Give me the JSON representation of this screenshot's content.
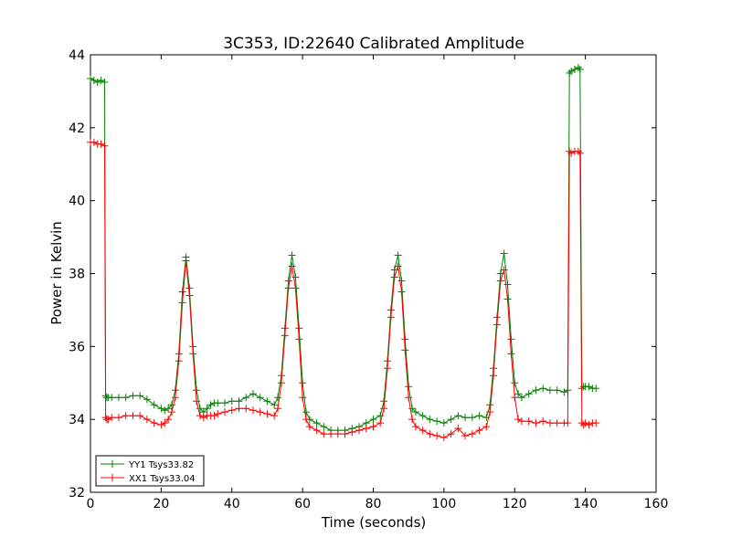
{
  "chart_data": {
    "type": "line",
    "title": "3C353, ID:22640 Calibrated Amplitude",
    "xlabel": "Time (seconds)",
    "ylabel": "Power in Kelvin",
    "xlim": [
      0,
      160
    ],
    "ylim": [
      32,
      44
    ],
    "xticks": [
      0,
      20,
      40,
      60,
      80,
      100,
      120,
      140,
      160
    ],
    "yticks": [
      32,
      34,
      36,
      38,
      40,
      42,
      44
    ],
    "grid": false,
    "legend_position": "lower-left",
    "series": [
      {
        "name": "YY1 Tsys33.82",
        "color": "#008000",
        "marker": "plus",
        "x": [
          0,
          1,
          2,
          3,
          4,
          4.3,
          4.6,
          5,
          6,
          8,
          10,
          12,
          14,
          16,
          18,
          20,
          21,
          22,
          23,
          24,
          25,
          26,
          27,
          28,
          29,
          30,
          31,
          32,
          33,
          34,
          35,
          36,
          38,
          40,
          42,
          44,
          46,
          48,
          50,
          52,
          53,
          54,
          55,
          56,
          57,
          58,
          59,
          60,
          61,
          62,
          64,
          66,
          68,
          70,
          72,
          74,
          76,
          78,
          80,
          82,
          83,
          84,
          85,
          86,
          87,
          88,
          89,
          90,
          91,
          92,
          94,
          96,
          98,
          100,
          102,
          104,
          106,
          108,
          110,
          112,
          113,
          114,
          115,
          116,
          117,
          118,
          119,
          120,
          121,
          122,
          124,
          126,
          128,
          130,
          132,
          134,
          135,
          135.5,
          136,
          137,
          138,
          138.5,
          139,
          139.5,
          140,
          141,
          142,
          143
        ],
        "y": [
          43.35,
          43.3,
          43.25,
          43.3,
          43.25,
          34.65,
          34.6,
          34.6,
          34.6,
          34.6,
          34.6,
          34.65,
          34.65,
          34.55,
          34.4,
          34.3,
          34.25,
          34.3,
          34.4,
          34.8,
          35.8,
          37.5,
          38.45,
          37.6,
          36,
          34.8,
          34.3,
          34.2,
          34.3,
          34.4,
          34.45,
          34.45,
          34.45,
          34.5,
          34.5,
          34.6,
          34.7,
          34.6,
          34.5,
          34.4,
          34.6,
          35.2,
          36.5,
          37.8,
          38.5,
          37.9,
          36.5,
          35,
          34.2,
          34,
          33.9,
          33.8,
          33.7,
          33.7,
          33.7,
          33.75,
          33.8,
          33.9,
          34,
          34.1,
          34.5,
          35.6,
          37,
          38.1,
          38.5,
          37.8,
          36.2,
          34.9,
          34.3,
          34.2,
          34.1,
          34,
          33.95,
          33.9,
          34,
          34.1,
          34.05,
          34.05,
          34.1,
          34.05,
          34.4,
          35.4,
          36.8,
          38,
          38.55,
          37.7,
          36.2,
          35,
          34.7,
          34.6,
          34.7,
          34.8,
          34.85,
          34.8,
          34.8,
          34.75,
          34.8,
          43.5,
          43.55,
          43.6,
          43.65,
          43.6,
          34.85,
          34.9,
          34.9,
          34.9,
          34.85,
          34.85
        ]
      },
      {
        "name": "XX1 Tsys33.04",
        "color": "#ff0000",
        "marker": "plus",
        "x": [
          0,
          1,
          2,
          3,
          4,
          4.3,
          4.6,
          5,
          6,
          8,
          10,
          12,
          14,
          16,
          18,
          20,
          21,
          22,
          23,
          24,
          25,
          26,
          27,
          28,
          29,
          30,
          31,
          32,
          33,
          34,
          35,
          36,
          38,
          40,
          42,
          44,
          46,
          48,
          50,
          52,
          53,
          54,
          55,
          56,
          57,
          58,
          59,
          60,
          61,
          62,
          64,
          66,
          68,
          70,
          72,
          74,
          76,
          78,
          80,
          82,
          83,
          84,
          85,
          86,
          87,
          88,
          89,
          90,
          91,
          92,
          94,
          96,
          98,
          100,
          102,
          104,
          106,
          108,
          110,
          112,
          113,
          114,
          115,
          116,
          117,
          118,
          119,
          120,
          121,
          122,
          124,
          126,
          128,
          130,
          132,
          134,
          135,
          135.5,
          136,
          137,
          138,
          138.5,
          139,
          139.5,
          140,
          141,
          142,
          143
        ],
        "y": [
          41.6,
          41.6,
          41.55,
          41.55,
          41.5,
          34.05,
          34,
          34,
          34.05,
          34.05,
          34.1,
          34.1,
          34.1,
          34,
          33.9,
          33.85,
          33.9,
          34,
          34.2,
          34.6,
          35.6,
          37.2,
          38.35,
          37.4,
          35.8,
          34.5,
          34.1,
          34.05,
          34.1,
          34.1,
          34.1,
          34.15,
          34.2,
          34.25,
          34.3,
          34.3,
          34.25,
          34.2,
          34.15,
          34.1,
          34.3,
          35,
          36.3,
          37.6,
          38.2,
          37.6,
          36.2,
          34.6,
          34,
          33.8,
          33.7,
          33.6,
          33.6,
          33.6,
          33.6,
          33.65,
          33.7,
          33.75,
          33.8,
          33.9,
          34.3,
          35.4,
          36.8,
          37.9,
          38.2,
          37.5,
          35.9,
          34.6,
          34,
          33.8,
          33.7,
          33.6,
          33.55,
          33.5,
          33.6,
          33.75,
          33.55,
          33.6,
          33.7,
          33.8,
          34.2,
          35.2,
          36.6,
          37.8,
          38.1,
          37.3,
          35.8,
          34.6,
          34,
          33.95,
          33.95,
          33.9,
          33.95,
          33.9,
          33.9,
          33.9,
          33.9,
          41.35,
          41.3,
          41.35,
          41.35,
          41.3,
          33.9,
          33.85,
          33.9,
          33.85,
          33.9,
          33.9
        ]
      }
    ]
  }
}
